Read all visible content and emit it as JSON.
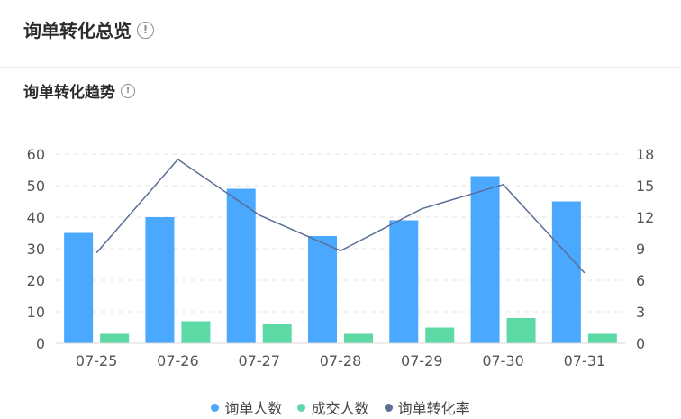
{
  "header": {
    "title": "询单转化总览"
  },
  "section": {
    "title": "询单转化趋势"
  },
  "chart_data": {
    "type": "bar",
    "categories": [
      "07-25",
      "07-26",
      "07-27",
      "07-28",
      "07-29",
      "07-30",
      "07-31"
    ],
    "series": [
      {
        "name": "询单人数",
        "type": "bar",
        "axis": "left",
        "color": "#4aa8ff",
        "values": [
          35,
          40,
          49,
          34,
          39,
          53,
          45
        ]
      },
      {
        "name": "成交人数",
        "type": "bar",
        "axis": "left",
        "color": "#5cd9a5",
        "values": [
          3,
          7,
          6,
          3,
          5,
          8,
          3
        ]
      },
      {
        "name": "询单转化率",
        "type": "line",
        "axis": "right",
        "color": "#5b6e96",
        "values": [
          8.6,
          17.5,
          12.2,
          8.8,
          12.8,
          15.1,
          6.7
        ]
      }
    ],
    "y_left": {
      "min": 0,
      "max": 60,
      "ticks": [
        "0",
        "10",
        "20",
        "30",
        "40",
        "50",
        "60"
      ]
    },
    "y_right": {
      "min": 0,
      "max": 18,
      "ticks": [
        "0",
        "3",
        "6",
        "9",
        "12",
        "15",
        "18"
      ]
    },
    "grid": "dashed-horizontal",
    "legend_position": "bottom-center"
  }
}
